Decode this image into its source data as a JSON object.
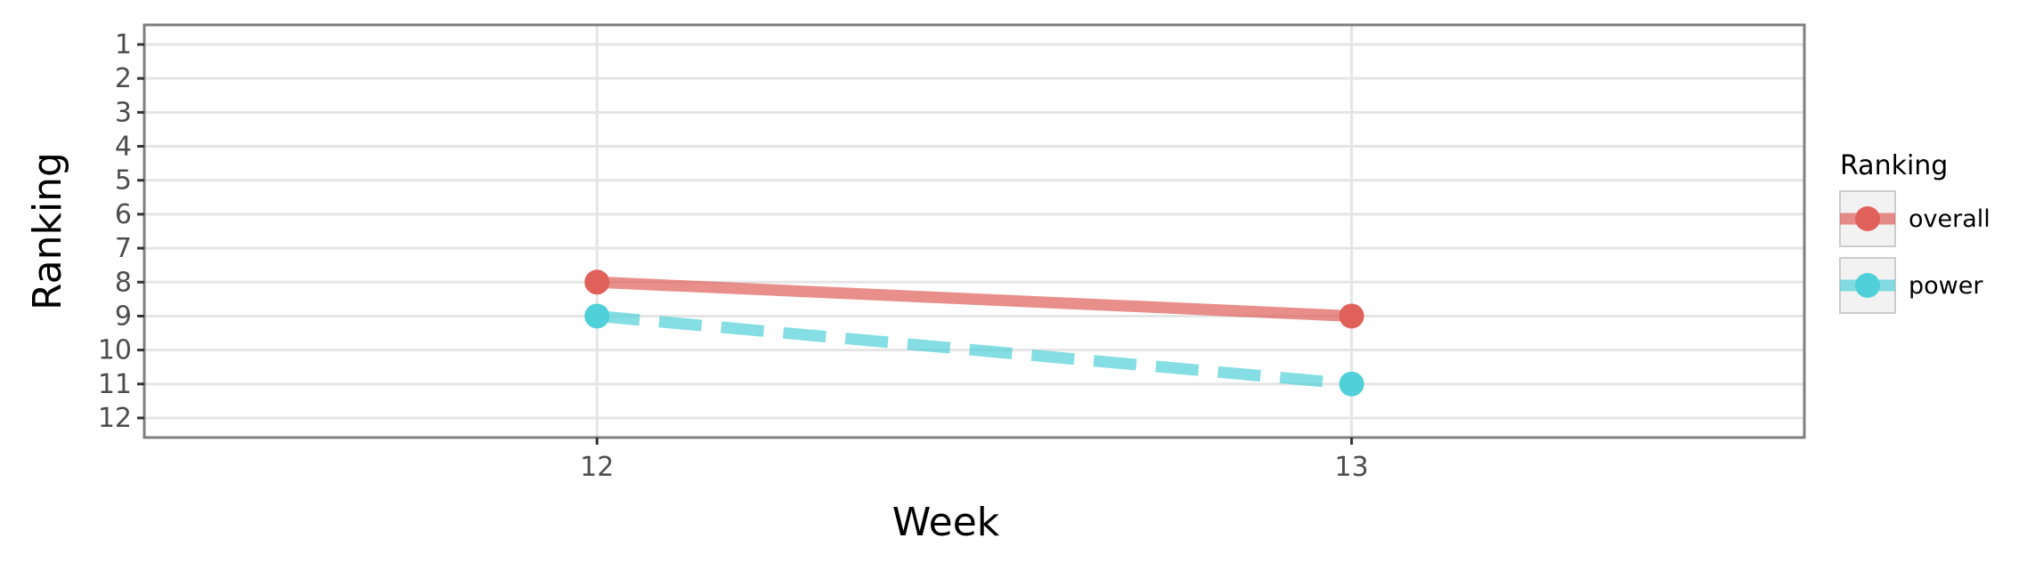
{
  "chart_data": {
    "type": "line",
    "xlabel": "Week",
    "ylabel": "Ranking",
    "x": [
      12,
      13
    ],
    "x_ticks": [
      "12",
      "13"
    ],
    "y_ticks": [
      "1",
      "2",
      "3",
      "4",
      "5",
      "6",
      "7",
      "8",
      "9",
      "10",
      "11",
      "12"
    ],
    "y_reversed": true,
    "xlim": [
      11.4,
      13.6
    ],
    "ylim": [
      1,
      12
    ],
    "grid": true,
    "legend": {
      "title": "Ranking",
      "placement": "right",
      "entries": [
        "overall",
        "power"
      ]
    },
    "series": [
      {
        "name": "overall",
        "values": [
          8,
          9
        ],
        "color": "#e0605a",
        "line_style": "solid"
      },
      {
        "name": "power",
        "values": [
          9,
          11
        ],
        "color": "#50d0d8",
        "line_style": "dashed"
      }
    ]
  }
}
